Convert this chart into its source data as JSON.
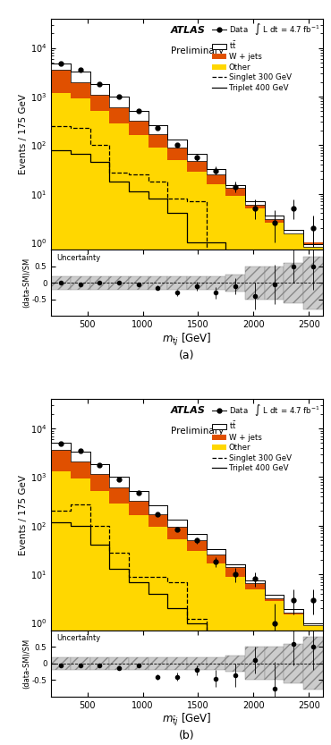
{
  "bins": [
    175,
    350,
    525,
    700,
    875,
    1050,
    1225,
    1400,
    1575,
    1750,
    1925,
    2100,
    2275,
    2450,
    2625
  ],
  "bin_centers": [
    262,
    437,
    612,
    787,
    962,
    1137,
    1312,
    1487,
    1662,
    1837,
    2012,
    2187,
    2362,
    2537
  ],
  "panel_a": {
    "other": [
      1200,
      900,
      500,
      280,
      160,
      90,
      50,
      28,
      16,
      9,
      5,
      2.5,
      1.5,
      1.0
    ],
    "wjets": [
      3500,
      2000,
      1100,
      600,
      320,
      170,
      90,
      48,
      25,
      13,
      6,
      3.0,
      1.5,
      0.8
    ],
    "ttbar": [
      4800,
      3200,
      1800,
      1000,
      500,
      260,
      130,
      65,
      32,
      15,
      7,
      3.5,
      1.8,
      0.9
    ],
    "singlet300": [
      250,
      230,
      100,
      27,
      25,
      18,
      8,
      7,
      0,
      0,
      0,
      0,
      0,
      0
    ],
    "triplet400": [
      80,
      65,
      45,
      18,
      11,
      8,
      4,
      1,
      1,
      0.5,
      0,
      0,
      0,
      0
    ],
    "data": [
      4800,
      3500,
      1800,
      1000,
      500,
      230,
      100,
      55,
      30,
      14,
      5,
      2.5,
      5.0,
      2.0
    ],
    "data_err_lo": [
      200,
      150,
      80,
      50,
      25,
      15,
      10,
      7,
      5,
      3.5,
      2,
      1.5,
      2.0,
      1.2
    ],
    "data_err_hi": [
      220,
      160,
      85,
      55,
      28,
      18,
      12,
      8,
      6,
      4.0,
      2.5,
      2.0,
      2.5,
      1.5
    ],
    "ratio": [
      0.0,
      -0.05,
      0.0,
      0.0,
      -0.05,
      -0.15,
      -0.3,
      -0.1,
      -0.3,
      -0.1,
      -0.4,
      -0.05,
      0.5,
      0.5
    ],
    "ratio_err": [
      0.04,
      0.04,
      0.05,
      0.05,
      0.05,
      0.07,
      0.1,
      0.13,
      0.18,
      0.25,
      0.4,
      0.6,
      0.5,
      0.7
    ],
    "unc_lo": [
      -0.2,
      -0.2,
      -0.2,
      -0.2,
      -0.2,
      -0.2,
      -0.2,
      -0.2,
      -0.2,
      -0.25,
      -0.5,
      -0.5,
      -0.6,
      -0.8
    ],
    "unc_hi": [
      0.2,
      0.2,
      0.2,
      0.2,
      0.2,
      0.2,
      0.2,
      0.2,
      0.2,
      0.25,
      0.5,
      0.5,
      0.6,
      0.8
    ],
    "xlabel_latex": "$m_{\\mathrm{t}j}$ [GeV]"
  },
  "panel_b": {
    "other": [
      1300,
      950,
      520,
      290,
      165,
      95,
      52,
      30,
      17,
      9,
      5,
      2.8,
      1.5,
      1.0
    ],
    "wjets": [
      3600,
      2100,
      1150,
      620,
      330,
      175,
      95,
      50,
      26,
      14,
      6.5,
      3.2,
      1.6,
      0.9
    ],
    "ttbar": [
      5000,
      3300,
      1850,
      1020,
      510,
      265,
      135,
      67,
      33,
      16,
      7.5,
      3.8,
      1.9,
      1.0
    ],
    "singlet300": [
      200,
      280,
      100,
      28,
      9,
      9,
      7,
      1.2,
      0,
      0,
      0,
      0,
      0,
      0
    ],
    "triplet400": [
      120,
      100,
      40,
      13,
      7,
      4,
      2,
      1.0,
      0.5,
      0,
      0,
      0,
      0,
      0
    ],
    "data": [
      4800,
      3500,
      1800,
      900,
      480,
      170,
      85,
      50,
      18,
      10,
      8,
      1.0,
      3.0,
      3.0
    ],
    "data_err_lo": [
      200,
      150,
      80,
      45,
      25,
      13,
      9,
      7,
      4,
      3,
      2.5,
      1.0,
      1.5,
      1.5
    ],
    "data_err_hi": [
      220,
      160,
      85,
      50,
      28,
      15,
      11,
      8,
      5,
      3.5,
      3,
      1.5,
      2.0,
      2.0
    ],
    "ratio": [
      -0.05,
      -0.05,
      -0.05,
      -0.15,
      -0.05,
      -0.4,
      -0.4,
      -0.2,
      -0.45,
      -0.35,
      0.1,
      -0.75,
      0.6,
      0.5
    ],
    "ratio_err": [
      0.04,
      0.04,
      0.05,
      0.05,
      0.06,
      0.08,
      0.12,
      0.15,
      0.25,
      0.35,
      0.4,
      0.8,
      0.65,
      0.7
    ],
    "unc_lo": [
      -0.2,
      -0.2,
      -0.2,
      -0.2,
      -0.2,
      -0.2,
      -0.2,
      -0.2,
      -0.2,
      -0.25,
      -0.5,
      -0.5,
      -0.6,
      -0.8
    ],
    "unc_hi": [
      0.2,
      0.2,
      0.2,
      0.2,
      0.2,
      0.2,
      0.2,
      0.2,
      0.2,
      0.25,
      0.5,
      0.5,
      0.6,
      0.8
    ],
    "xlabel_latex": "$m_{\\bar{\\mathrm{t}}j}$ [GeV]"
  },
  "color_wjets": "#e05000",
  "color_other": "#ffd700",
  "ylabel_main": "Events / 175 GeV",
  "ylabel_ratio": "(data-SM)/SM",
  "ylim_main": [
    0.7,
    40000
  ],
  "ylim_ratio": [
    -1.0,
    1.0
  ],
  "xlim": [
    175,
    2625
  ],
  "xticks": [
    500,
    1000,
    1500,
    2000,
    2500
  ]
}
